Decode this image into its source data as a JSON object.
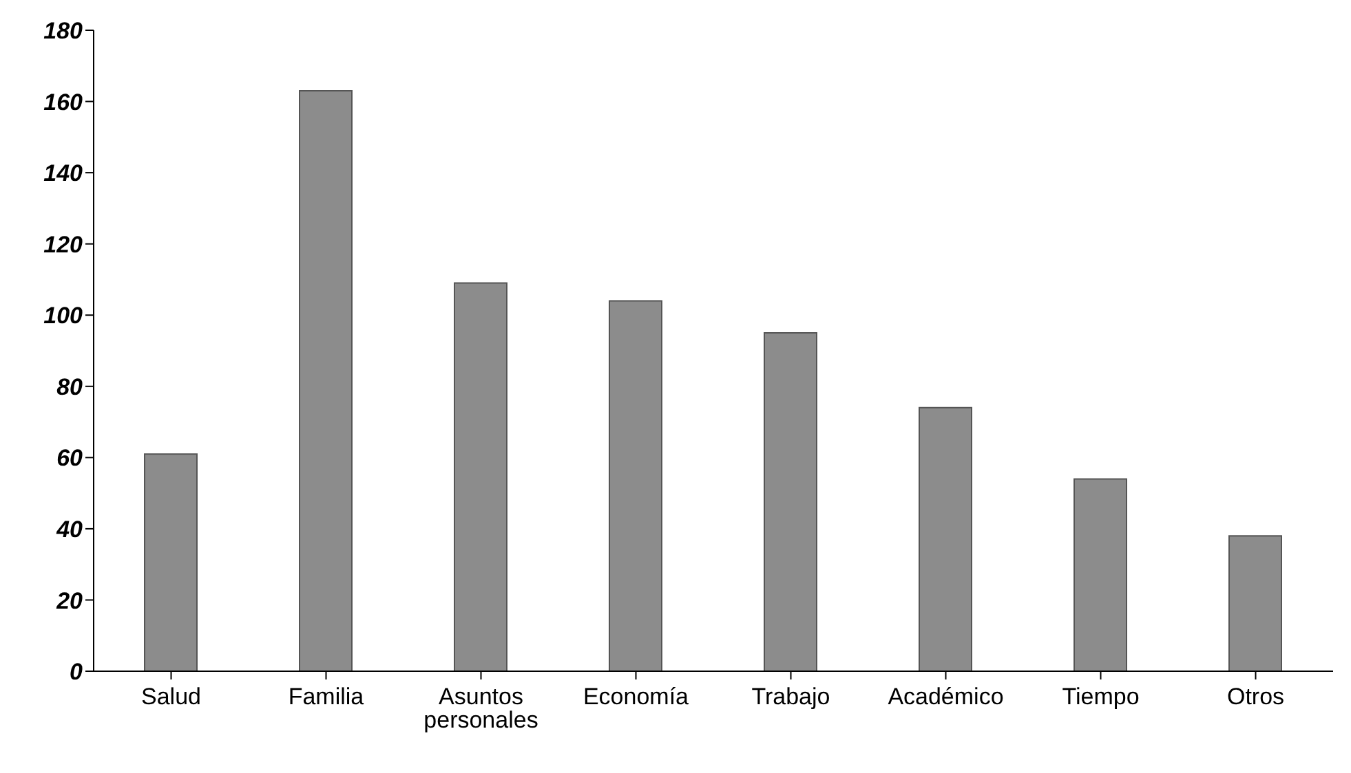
{
  "chart_data": {
    "type": "bar",
    "categories": [
      "Salud",
      "Familia",
      "Asuntos personales",
      "Economía",
      "Trabajo",
      "Académico",
      "Tiempo",
      "Otros"
    ],
    "values": [
      61,
      163,
      109,
      104,
      95,
      74,
      54,
      38
    ],
    "color": "#8c8c8c",
    "ylim": [
      0,
      180
    ],
    "yticks": [
      0,
      20,
      40,
      60,
      80,
      100,
      120,
      140,
      160,
      180
    ],
    "grid": false,
    "legend": false
  }
}
